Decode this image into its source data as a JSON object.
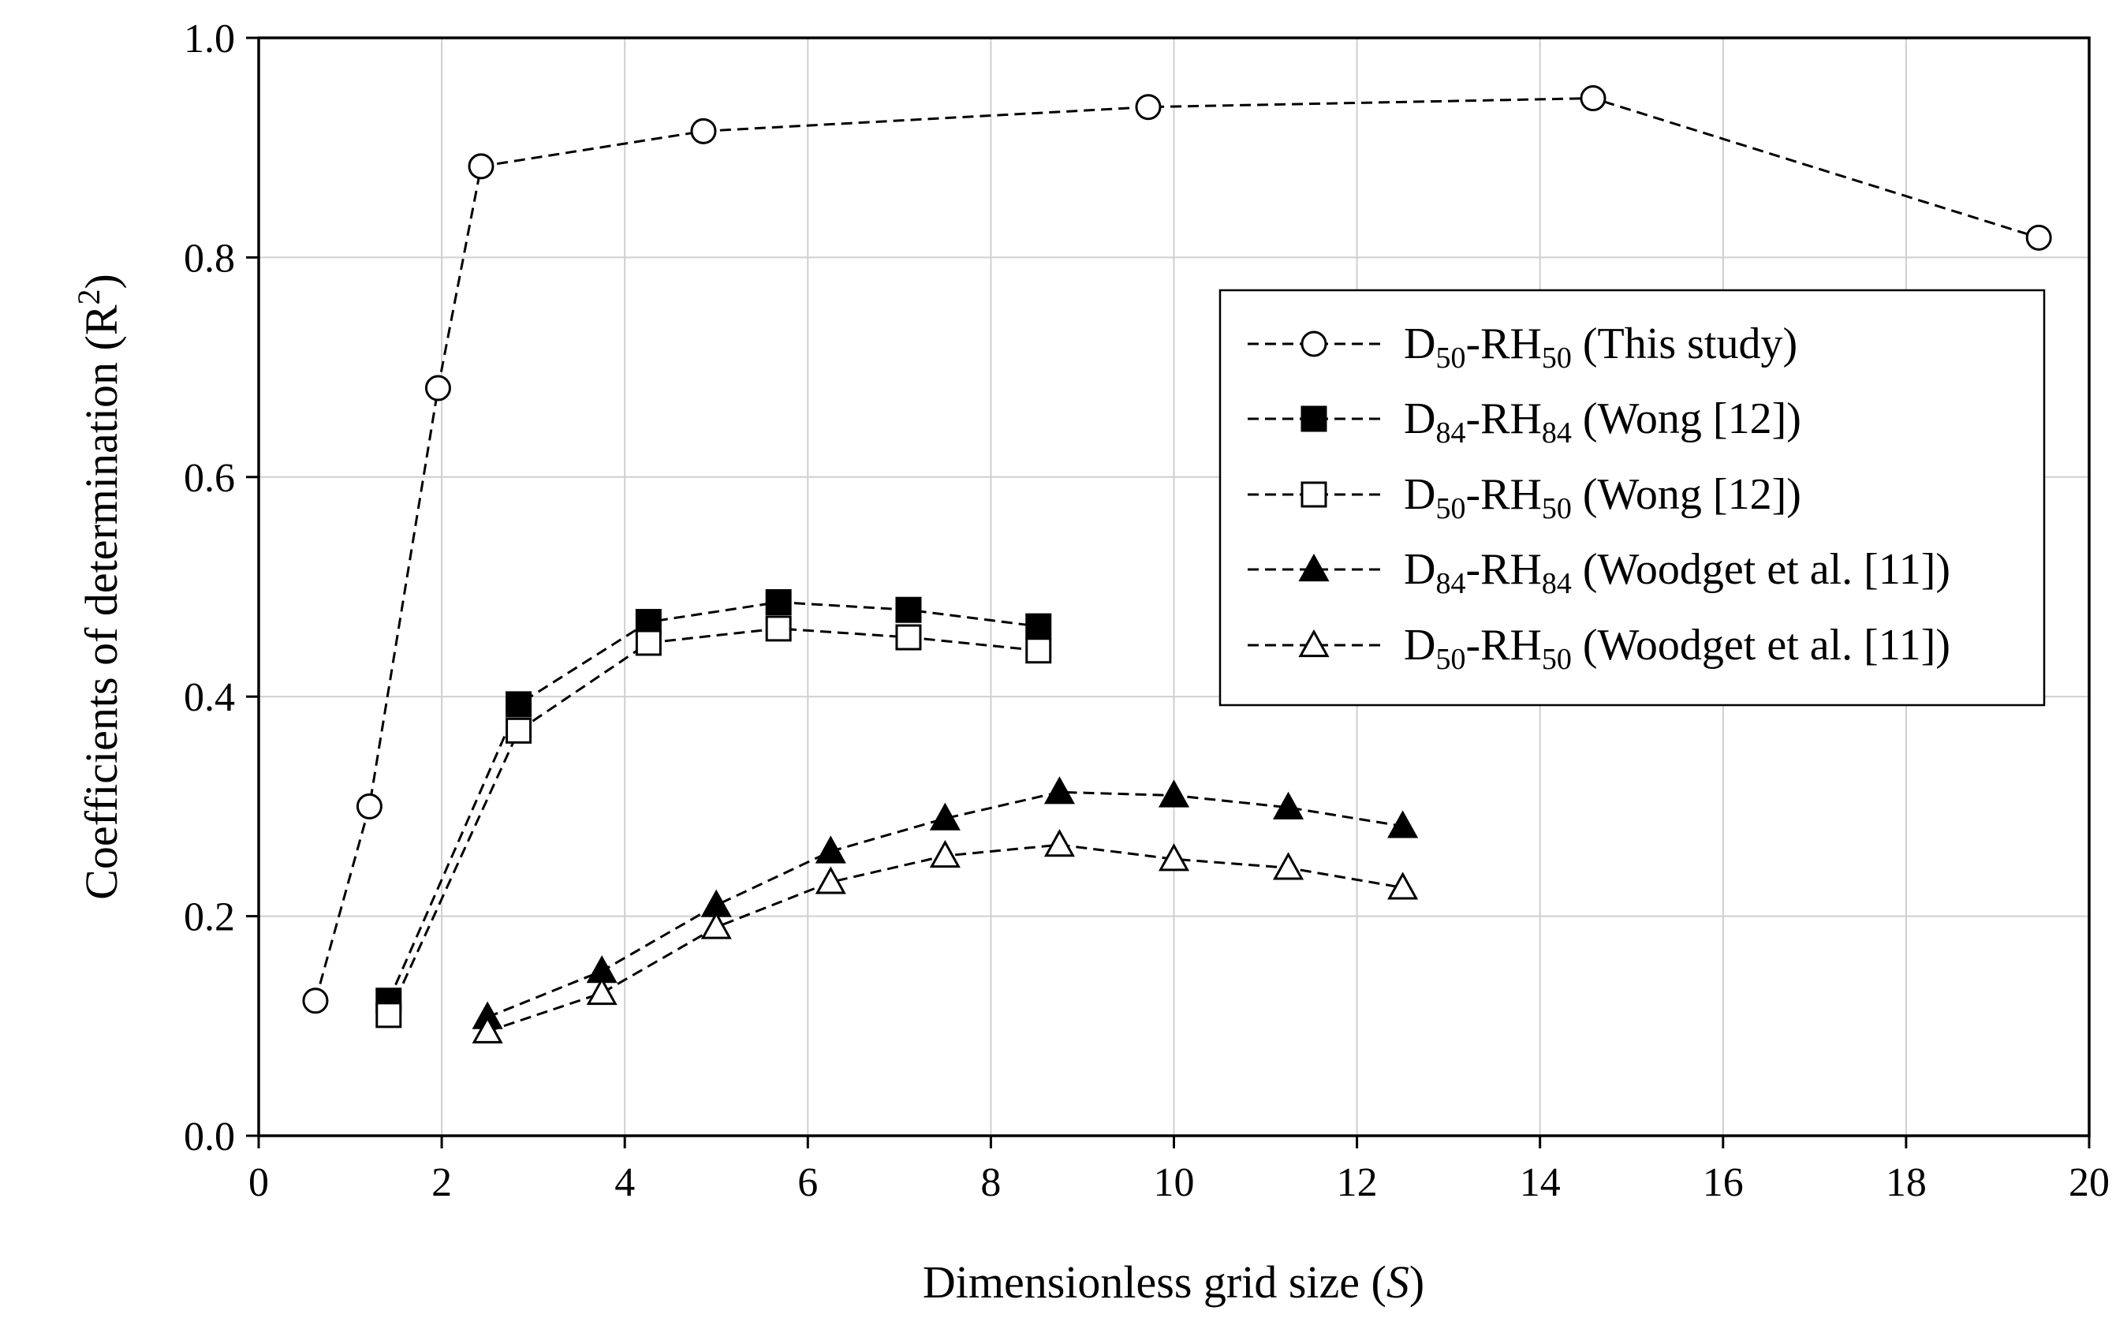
{
  "chart_data": {
    "type": "line",
    "title": "",
    "xlabel_main": "Dimensionless grid size (",
    "xlabel_symbol": "S",
    "xlabel_close": ")",
    "ylabel_main": "Coefficients of determination (R",
    "ylabel_sup": "2",
    "ylabel_close": ")",
    "xlim": [
      0,
      20
    ],
    "ylim": [
      0.0,
      1.0
    ],
    "xticks": [
      0,
      2,
      4,
      6,
      8,
      10,
      12,
      14,
      16,
      18,
      20
    ],
    "xtick_labels": [
      "0",
      "2",
      "4",
      "6",
      "8",
      "10",
      "12",
      "14",
      "16",
      "18",
      "20"
    ],
    "yticks": [
      0.0,
      0.2,
      0.4,
      0.6,
      0.8,
      1.0
    ],
    "ytick_labels": [
      "0.0",
      "0.2",
      "0.4",
      "0.6",
      "0.8",
      "1.0"
    ],
    "grid": true,
    "legend_position": "right",
    "series": [
      {
        "name": "D50-RH50 (This study)",
        "label_main": "D",
        "label_sub1": "50",
        "label_mid": "-RH",
        "label_sub2": "50",
        "label_tail": " (This study)",
        "marker": "circle-open",
        "x": [
          0.62,
          1.21,
          1.96,
          2.43,
          4.86,
          9.72,
          14.58,
          19.45
        ],
        "y": [
          0.123,
          0.3,
          0.681,
          0.883,
          0.915,
          0.937,
          0.945,
          0.818
        ]
      },
      {
        "name": "D84-RH84 (Wong [12])",
        "label_main": "D",
        "label_sub1": "84",
        "label_mid": "-RH",
        "label_sub2": "84",
        "label_tail": " (Wong [12])",
        "marker": "square-filled",
        "x": [
          1.42,
          2.84,
          4.26,
          5.68,
          7.1,
          8.52
        ],
        "y": [
          0.123,
          0.393,
          0.468,
          0.486,
          0.479,
          0.464
        ]
      },
      {
        "name": "D50-RH50 (Wong [12])",
        "label_main": "D",
        "label_sub1": "50",
        "label_mid": "-RH",
        "label_sub2": "50",
        "label_tail": " (Wong [12])",
        "marker": "square-open",
        "x": [
          1.42,
          2.84,
          4.26,
          5.68,
          7.1,
          8.52
        ],
        "y": [
          0.11,
          0.369,
          0.449,
          0.462,
          0.454,
          0.442
        ]
      },
      {
        "name": "D84-RH84 (Woodget et al. [11])",
        "label_main": "D",
        "label_sub1": "84",
        "label_mid": "-RH",
        "label_sub2": "84",
        "label_tail": " (Woodget et al. [11])",
        "marker": "triangle-filled",
        "x": [
          2.5,
          3.75,
          5.0,
          6.25,
          7.5,
          8.75,
          10.0,
          11.25,
          12.5
        ],
        "y": [
          0.108,
          0.15,
          0.21,
          0.259,
          0.289,
          0.313,
          0.31,
          0.299,
          0.282
        ]
      },
      {
        "name": "D50-RH50 (Woodget et al. [11])",
        "label_main": "D",
        "label_sub1": "50",
        "label_mid": "-RH",
        "label_sub2": "50",
        "label_tail": " (Woodget et al. [11])",
        "marker": "triangle-open",
        "x": [
          2.5,
          3.75,
          5.0,
          6.25,
          7.5,
          8.75,
          10.0,
          11.25,
          12.5
        ],
        "y": [
          0.095,
          0.13,
          0.19,
          0.231,
          0.255,
          0.265,
          0.252,
          0.244,
          0.226
        ]
      }
    ]
  }
}
